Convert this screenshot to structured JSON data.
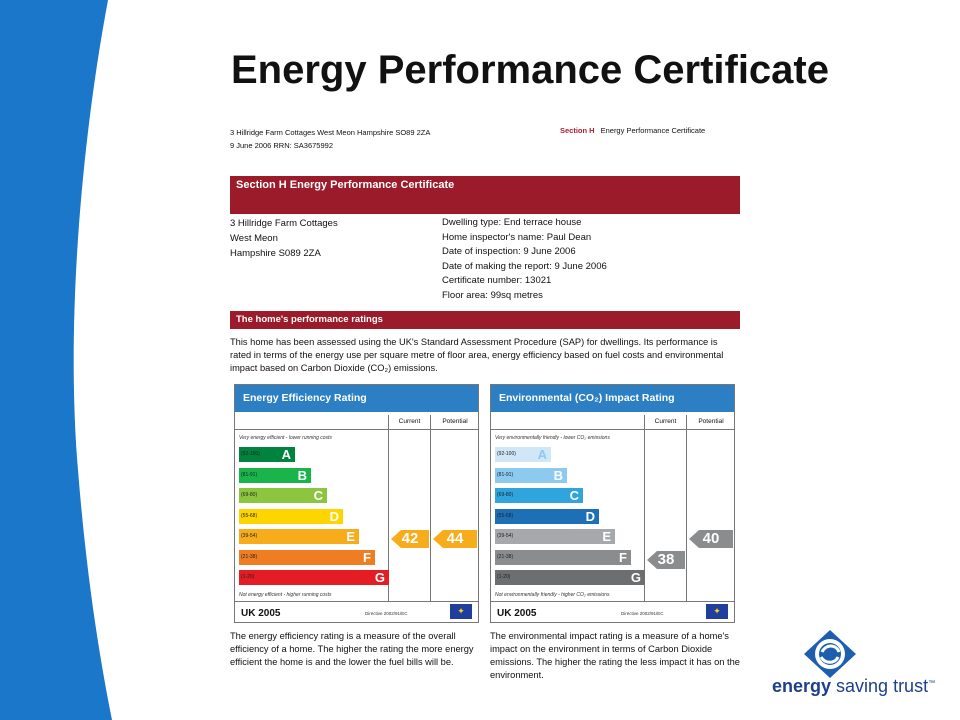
{
  "slide": {
    "title": "Energy Performance Certificate"
  },
  "certificate": {
    "header_left_line1": "3 Hillridge Farm Cottages West Meon Hampshire SO89 2ZA",
    "header_left_line2": "9 June 2006      RRN: SA3675992",
    "header_right_section": "Section H",
    "header_right_title": "Energy Performance Certificate",
    "banner_title": "Section H  Energy Performance Certificate",
    "address": [
      "3 Hillridge Farm Cottages",
      "West Meon",
      "Hampshire S089 2ZA"
    ],
    "details": [
      "Dwelling type: End terrace house",
      "Home inspector's name: Paul Dean",
      "Date of inspection: 9 June 2006",
      "Date of making the report: 9 June 2006",
      "Certificate number: 13021",
      "Floor area: 99sq metres"
    ],
    "ratings_banner": "The home's performance ratings",
    "intro": "This home has been assessed using the UK's Standard Assessment Procedure (SAP) for dwellings. Its performance is rated in terms of the energy use per square metre of floor area, energy efficiency based on fuel costs and environmental impact based on Carbon Dioxide (CO₂) emissions.",
    "efficiency_panel": {
      "title": "Energy Efficiency Rating",
      "col_current": "Current",
      "col_potential": "Potential",
      "top_note": "Very energy efficient - lower running costs",
      "bottom_note": "Not energy efficient - higher running costs",
      "bands": [
        {
          "range": "(92-100)",
          "letter": "A",
          "color": "#00843d"
        },
        {
          "range": "(81-91)",
          "letter": "B",
          "color": "#19b44a"
        },
        {
          "range": "(69-80)",
          "letter": "C",
          "color": "#8cc63e"
        },
        {
          "range": "(55-68)",
          "letter": "D",
          "color": "#ffd500"
        },
        {
          "range": "(39-54)",
          "letter": "E",
          "color": "#f7ac1b"
        },
        {
          "range": "(21-38)",
          "letter": "F",
          "color": "#ef7d22"
        },
        {
          "range": "(1-20)",
          "letter": "G",
          "color": "#e31d23"
        }
      ],
      "current": "42",
      "potential": "44",
      "arrow_color": "#f7ac1b",
      "footer": "UK 2005",
      "directive": "Directive 2002/91/EC"
    },
    "environment_panel": {
      "title": "Environmental (CO₂) Impact Rating",
      "col_current": "Current",
      "col_potential": "Potential",
      "top_note": "Very environmentally friendly - lower CO₂ emissions",
      "bottom_note": "Not environmentally friendly - higher CO₂ emissions",
      "bands": [
        {
          "range": "(92-100)",
          "letter": "A",
          "color": "#cfe7f7"
        },
        {
          "range": "(81-91)",
          "letter": "B",
          "color": "#8ccaf0"
        },
        {
          "range": "(69-80)",
          "letter": "C",
          "color": "#2fa4dd"
        },
        {
          "range": "(55-68)",
          "letter": "D",
          "color": "#1e70b6"
        },
        {
          "range": "(39-54)",
          "letter": "E",
          "color": "#a6a8ab"
        },
        {
          "range": "(21-38)",
          "letter": "F",
          "color": "#8a8c8e"
        },
        {
          "range": "(1-20)",
          "letter": "G",
          "color": "#6d6e70"
        }
      ],
      "current": "38",
      "potential": "40",
      "arrow_color": "#8a8c8e",
      "footer": "UK 2005",
      "directive": "Directive 2002/91/EC"
    },
    "note_left": "The energy efficiency rating is a measure of the overall efficiency of a home. The higher the rating the more energy efficient the home is and the lower the fuel bills will be.",
    "note_right": "The environmental impact rating is a measure of a home's impact on the environment in terms of Carbon Dioxide emissions. The higher the rating the less impact it has on the environment."
  },
  "brand": {
    "name_bold": "energy",
    "name_rest": " saving trust",
    "tm": "™",
    "color": "#1d3f8e"
  }
}
